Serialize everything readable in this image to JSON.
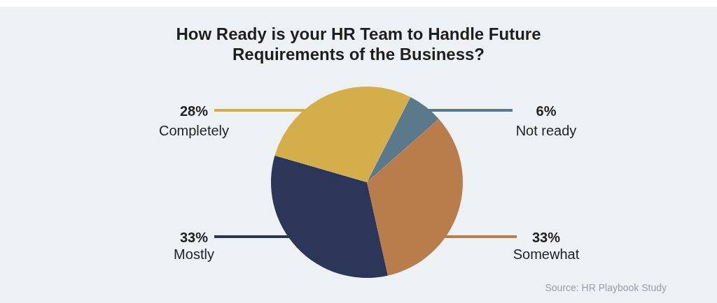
{
  "chart_data": {
    "type": "pie",
    "title": "How Ready is your HR Team to Handle Future Requirements of the Business?",
    "categories": [
      "Not ready",
      "Somewhat",
      "Mostly",
      "Completely"
    ],
    "values": [
      6,
      33,
      33,
      28
    ],
    "colors": [
      "#5a7a8c",
      "#b87d4b",
      "#2b3658",
      "#d4ae4a"
    ],
    "value_labels": [
      "6%",
      "33%",
      "33%",
      "28%"
    ],
    "annotations": [
      "Source: HR Playbook Study"
    ]
  }
}
